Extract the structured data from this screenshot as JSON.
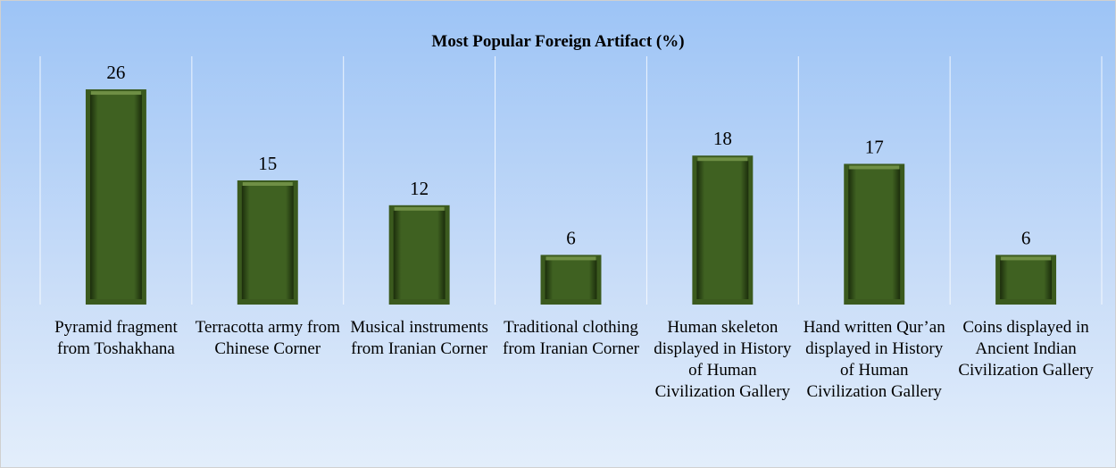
{
  "chart_data": {
    "type": "bar",
    "title": "Most Popular Foreign Artifact (%)",
    "categories": [
      "Pyramid fragment from Toshakhana",
      "Terracotta army from Chinese Corner",
      "Musical instruments from Iranian Corner",
      "Traditional clothing from Iranian Corner",
      "Human skeleton displayed in History of Human Civilization Gallery",
      "Hand written Qur’an displayed in History of Human Civilization Gallery",
      "Coins displayed in Ancient Indian Civilization Gallery"
    ],
    "values": [
      26,
      15,
      12,
      6,
      18,
      17,
      6
    ],
    "color": "#3b5a1e",
    "ylim": [
      0,
      30
    ],
    "grid": true
  }
}
